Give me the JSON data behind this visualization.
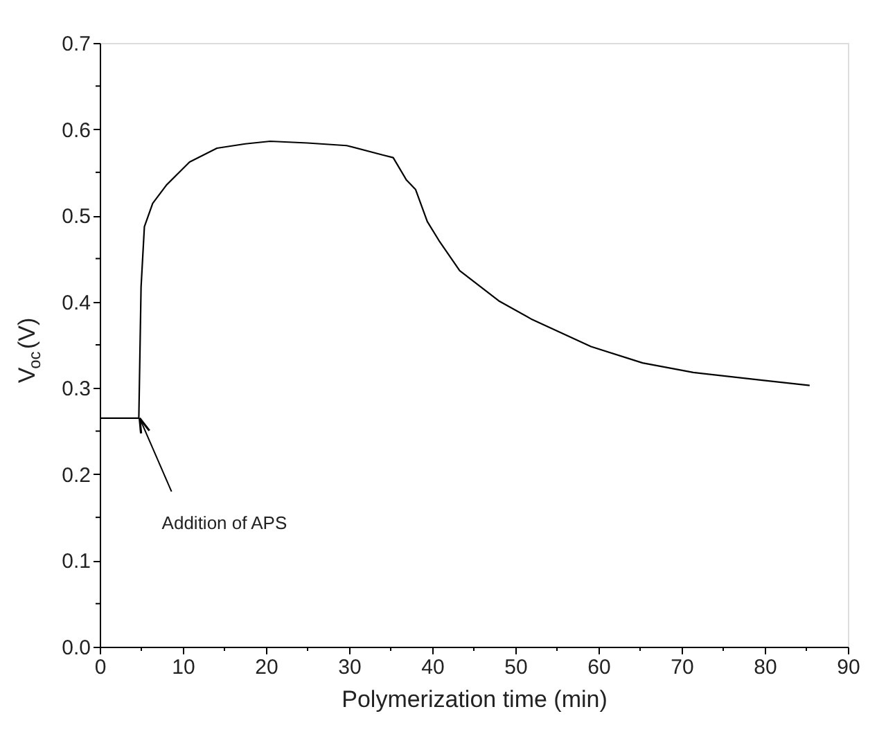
{
  "chart_data": {
    "type": "line",
    "xlabel": "Polymerization time (min)",
    "ylabel": "V$_{oc}$(V)",
    "x": [
      0,
      2,
      4.7,
      4.97,
      5.37,
      6.37,
      8.0,
      10.8,
      14.1,
      17.5,
      20.5,
      25,
      29.7,
      34.1,
      35.3,
      36.9,
      38.0,
      39.4,
      40.8,
      43.3,
      48.0,
      51.9,
      59.1,
      65.3,
      71.4,
      79.7,
      85.4
    ],
    "series": [
      {
        "color": "#000000",
        "values": [
          0.265,
          0.265,
          0.265,
          0.417,
          0.487,
          0.514,
          0.535,
          0.562,
          0.578,
          0.583,
          0.586,
          0.584,
          0.581,
          0.57,
          0.567,
          0.541,
          0.53,
          0.493,
          0.471,
          0.436,
          0.401,
          0.38,
          0.348,
          0.329,
          0.318,
          0.309,
          0.303
        ]
      }
    ],
    "xlim": [
      0,
      90
    ],
    "ylim": [
      0,
      0.7
    ],
    "xticks": [
      0,
      {
        "value": 5,
        "label": null
      },
      10,
      {
        "value": 15,
        "label": null
      },
      20,
      {
        "value": 25,
        "label": null
      },
      30,
      {
        "value": 35,
        "label": null
      },
      40,
      {
        "value": 45,
        "label": null
      },
      50,
      {
        "value": 55,
        "label": null
      },
      60,
      {
        "value": 65,
        "label": null
      },
      70,
      {
        "value": 75,
        "label": null
      },
      80,
      {
        "value": 85,
        "label": null
      },
      90
    ],
    "yticks": [
      {
        "value": 0,
        "label": "0.0"
      },
      {
        "value": 0.05,
        "label": null
      },
      0.1,
      {
        "value": 0.15,
        "label": null
      },
      0.2,
      {
        "value": 0.25,
        "label": null
      },
      0.3,
      {
        "value": 0.35,
        "label": null
      },
      0.4,
      {
        "value": 0.45,
        "label": null
      },
      0.5,
      {
        "value": 0.55,
        "label": null
      },
      0.6,
      {
        "value": 0.65,
        "label": null
      },
      0.7
    ],
    "annotations": [
      {
        "text": "Addition of APS",
        "x": 4.8,
        "y": 0.265
      }
    ],
    "grid": false,
    "marker": "none",
    "line_style": "solid"
  }
}
